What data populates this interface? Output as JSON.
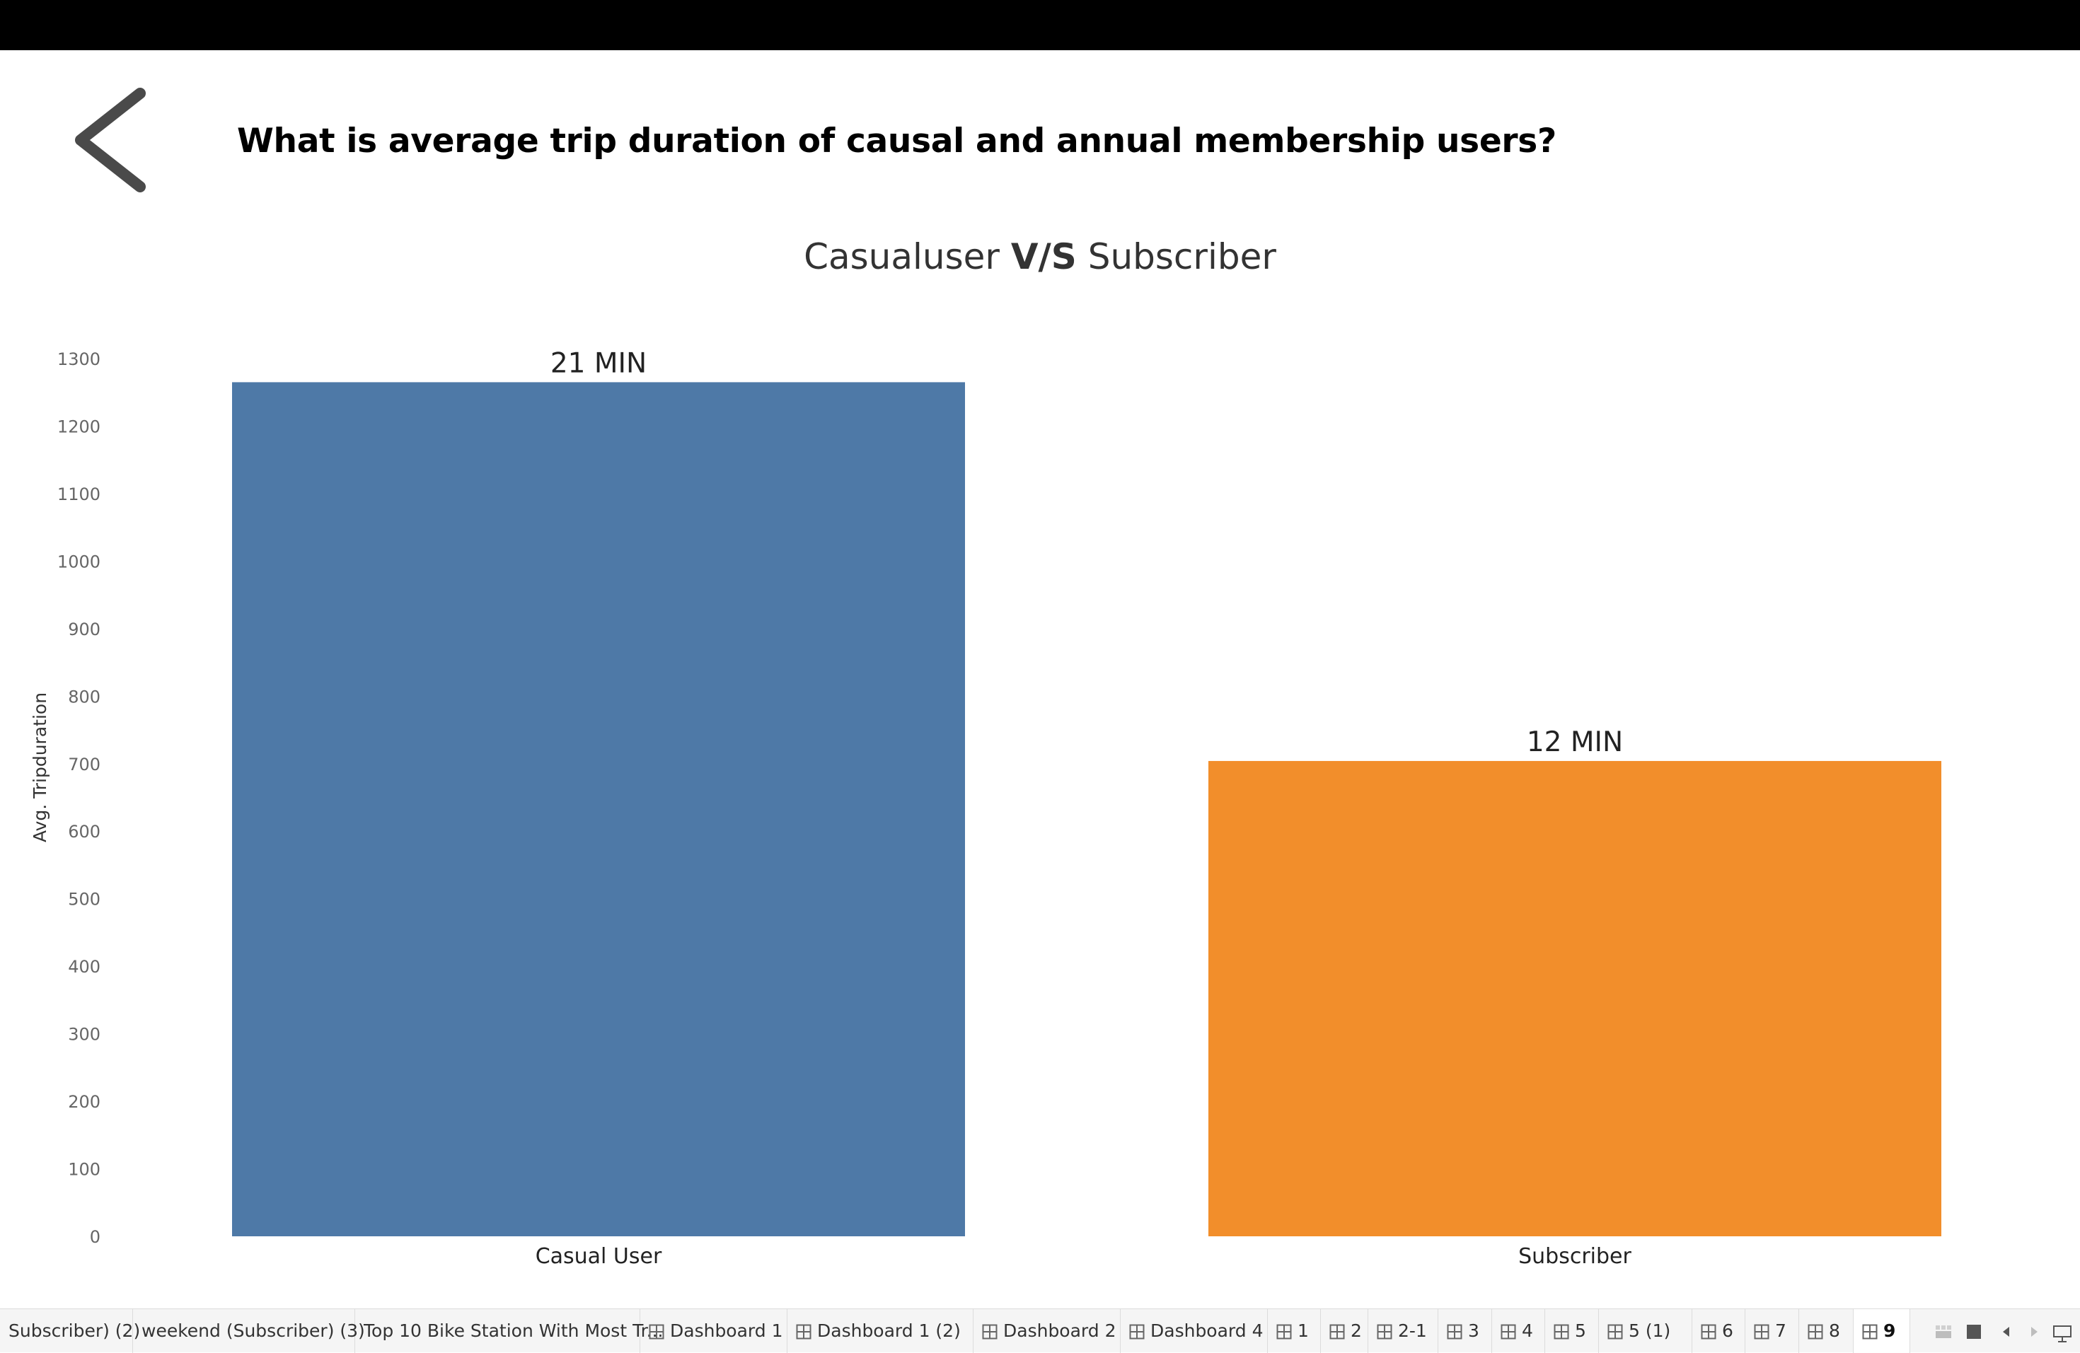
{
  "page": {
    "heading": "What is average trip duration of causal and annual membership users?",
    "back_icon": "chevron-left-icon"
  },
  "chart_data": {
    "type": "bar",
    "title_parts": [
      "Casualuser ",
      "V/S",
      " Subscriber"
    ],
    "ylabel": "Avg. Tripduration",
    "xlabel": "",
    "ylim": [
      0,
      1300
    ],
    "yticks": [
      0,
      100,
      200,
      300,
      400,
      500,
      600,
      700,
      800,
      900,
      1000,
      1100,
      1200,
      1300
    ],
    "categories": [
      "Casual User",
      "Subscriber"
    ],
    "values": [
      1265,
      704
    ],
    "data_labels": [
      "21 MIN",
      "12 MIN"
    ],
    "colors": [
      "#4e79a7",
      "#f28e2b"
    ],
    "grid": false,
    "legend": "none"
  },
  "tabs": [
    {
      "label": "Subscriber) (2)",
      "dashboard": false,
      "active": false
    },
    {
      "label": "weekend (Subscriber) (3)",
      "dashboard": false,
      "active": false
    },
    {
      "label": "Top 10 Bike Station With Most Tr...",
      "dashboard": false,
      "active": false
    },
    {
      "label": "Dashboard 1",
      "dashboard": true,
      "active": false
    },
    {
      "label": "Dashboard 1 (2)",
      "dashboard": true,
      "active": false
    },
    {
      "label": "Dashboard 2",
      "dashboard": true,
      "active": false
    },
    {
      "label": "Dashboard 4",
      "dashboard": true,
      "active": false
    },
    {
      "label": "1",
      "dashboard": true,
      "active": false
    },
    {
      "label": "2",
      "dashboard": true,
      "active": false
    },
    {
      "label": "2-1",
      "dashboard": true,
      "active": false
    },
    {
      "label": "3",
      "dashboard": true,
      "active": false
    },
    {
      "label": "4",
      "dashboard": true,
      "active": false
    },
    {
      "label": "5",
      "dashboard": true,
      "active": false
    },
    {
      "label": "5 (1)",
      "dashboard": true,
      "active": false
    },
    {
      "label": "6",
      "dashboard": true,
      "active": false
    },
    {
      "label": "7",
      "dashboard": true,
      "active": false
    },
    {
      "label": "8",
      "dashboard": true,
      "active": false
    },
    {
      "label": "9",
      "dashboard": true,
      "active": true
    }
  ],
  "tab_controls": [
    "filmstrip-view-icon",
    "grid-view-icon",
    "previous-sheet-icon",
    "next-sheet-icon",
    "presentation-mode-icon"
  ]
}
